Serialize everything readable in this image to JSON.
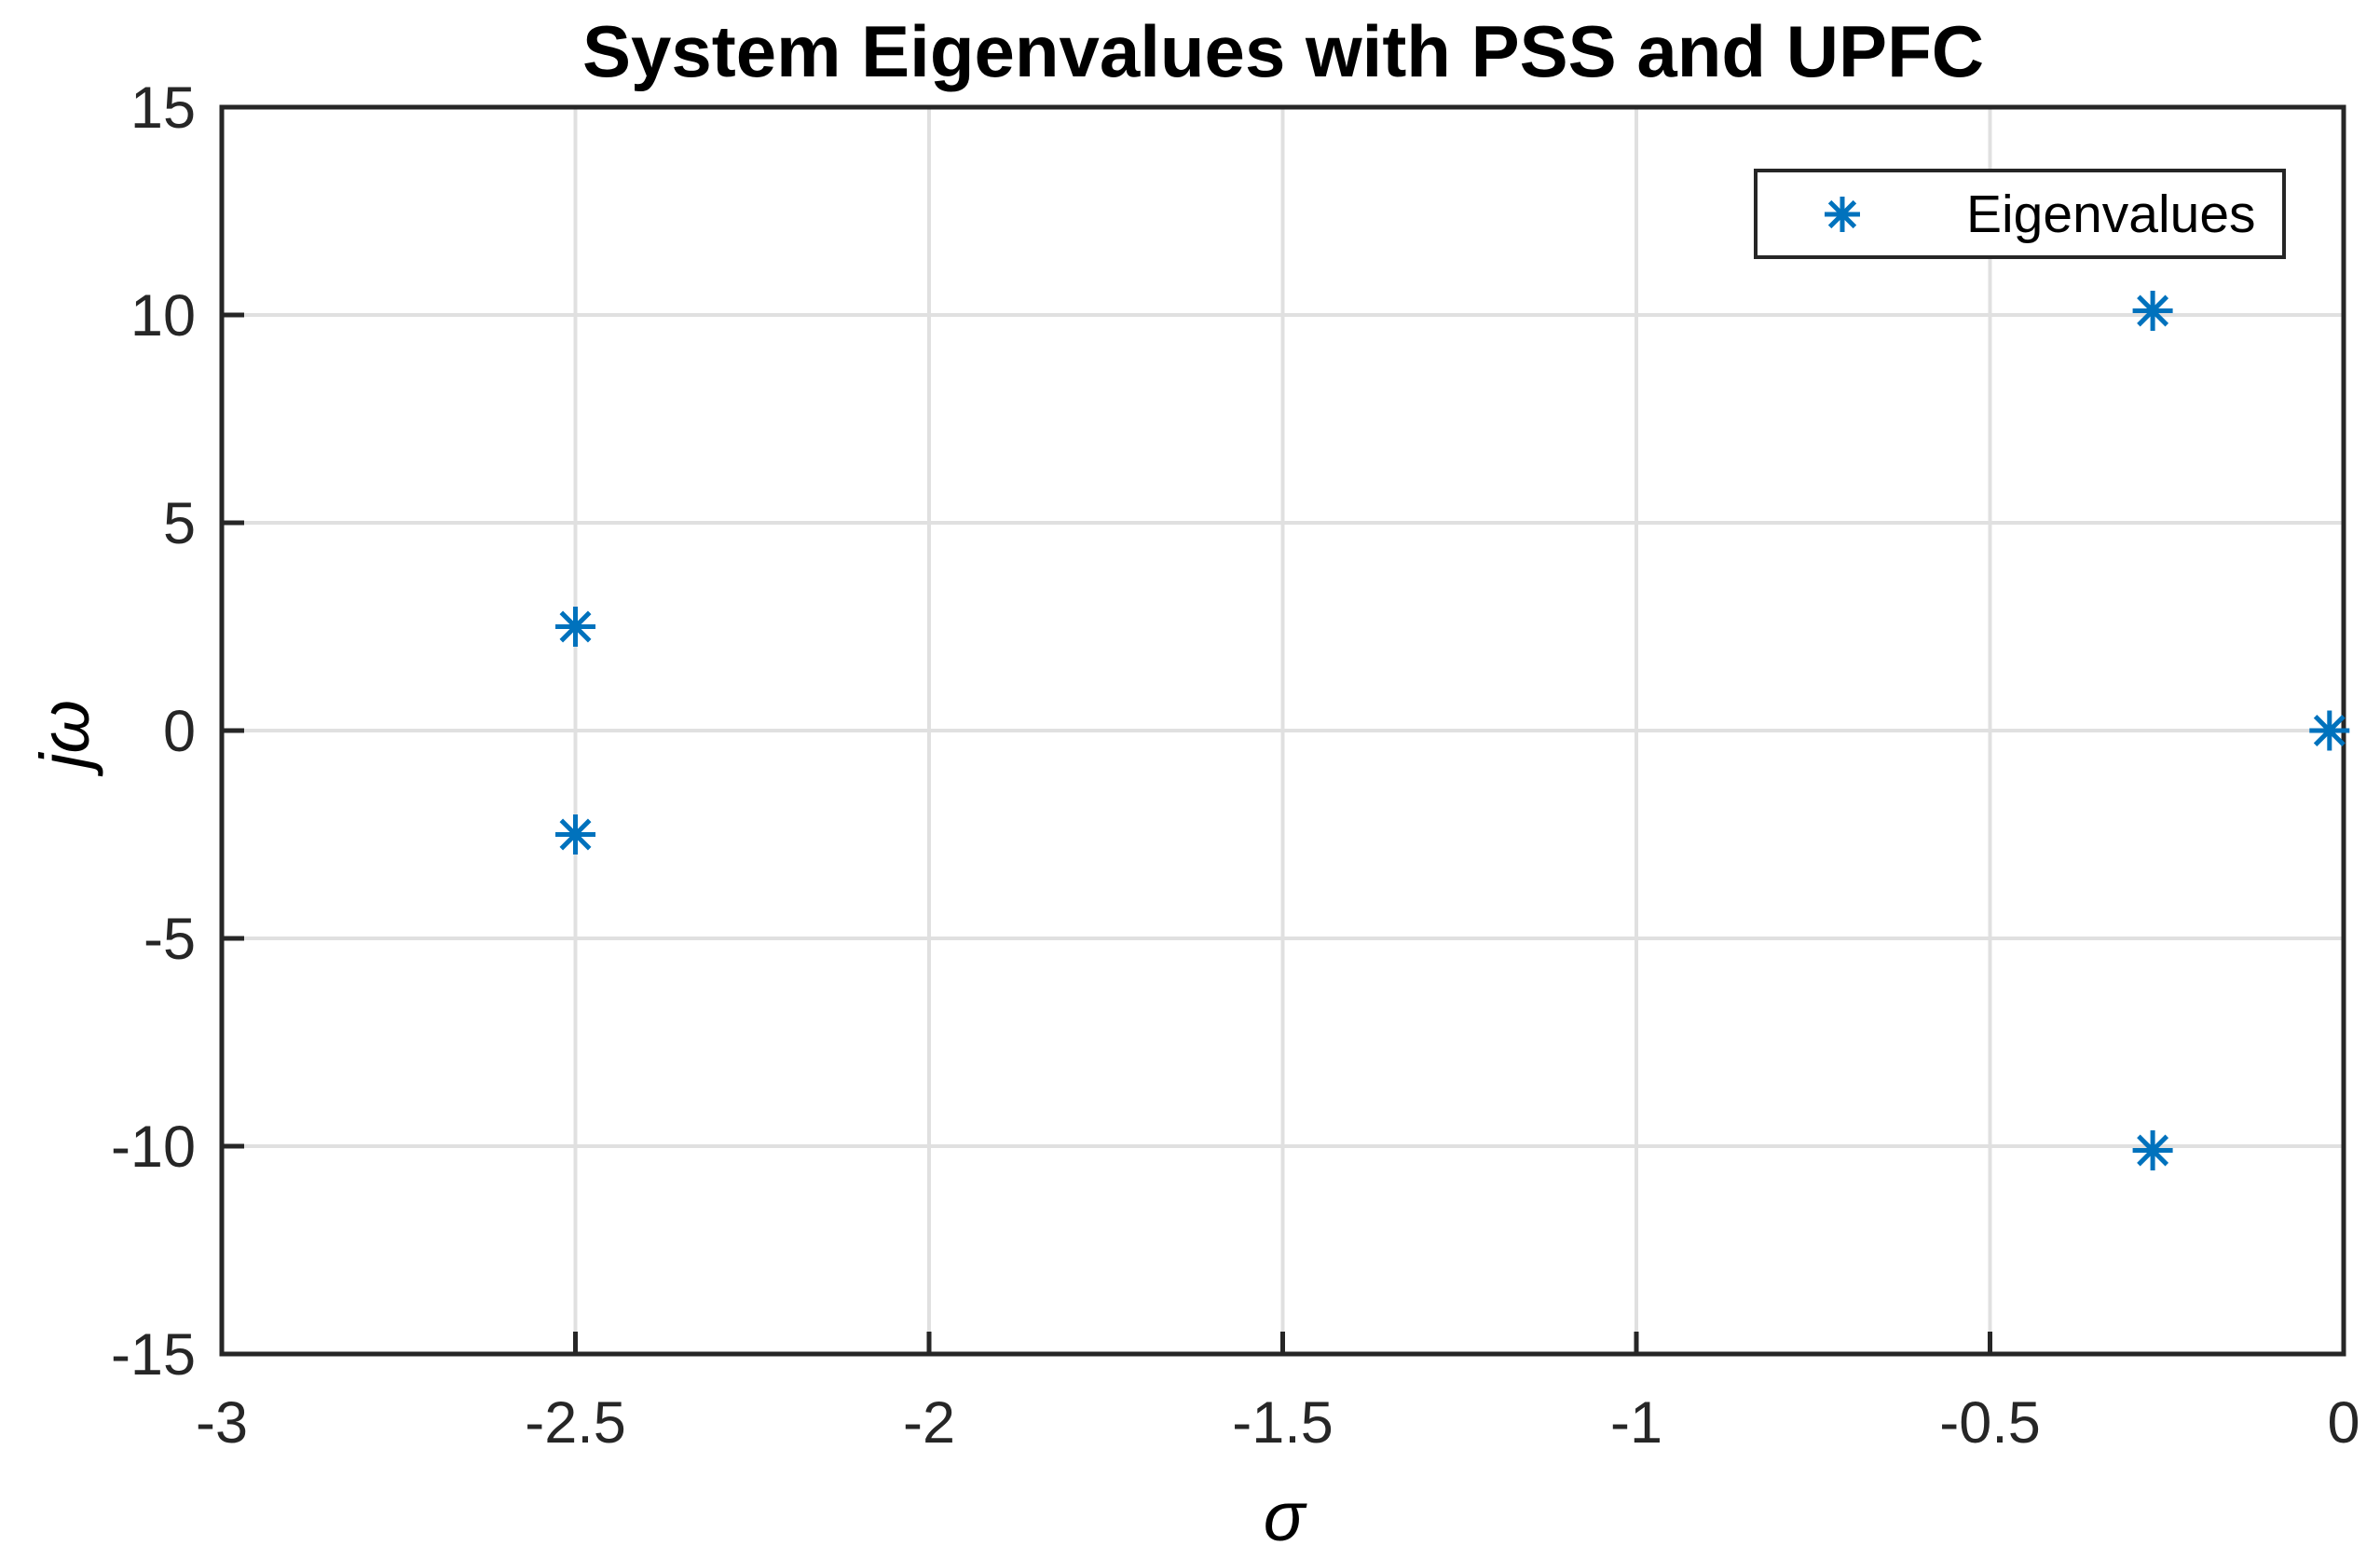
{
  "chart_data": {
    "type": "scatter",
    "title": "System Eigenvalues with PSS and UPFC",
    "xlabel": "σ",
    "ylabel": "jω",
    "xlim": [
      -3,
      0
    ],
    "ylim": [
      -15,
      15
    ],
    "xticks": [
      -3,
      -2.5,
      -2,
      -1.5,
      -1,
      -0.5,
      0
    ],
    "yticks": [
      -15,
      -10,
      -5,
      0,
      5,
      10,
      15
    ],
    "grid": true,
    "legend": {
      "position": "northeast",
      "entries": [
        "Eigenvalues"
      ]
    },
    "series": [
      {
        "name": "Eigenvalues",
        "marker": "asterisk",
        "color": "#0072BD",
        "points": [
          {
            "x": -2.5,
            "y": 2.5
          },
          {
            "x": -2.5,
            "y": -2.5
          },
          {
            "x": -0.27,
            "y": 10.1
          },
          {
            "x": -0.27,
            "y": -10.1
          },
          {
            "x": -0.02,
            "y": 0
          }
        ]
      }
    ],
    "colors": {
      "marker_blue": "#0072BD",
      "grid_gray": "#E0E0E0",
      "axis_dark": "#262626",
      "background": "#FFFFFF"
    }
  }
}
